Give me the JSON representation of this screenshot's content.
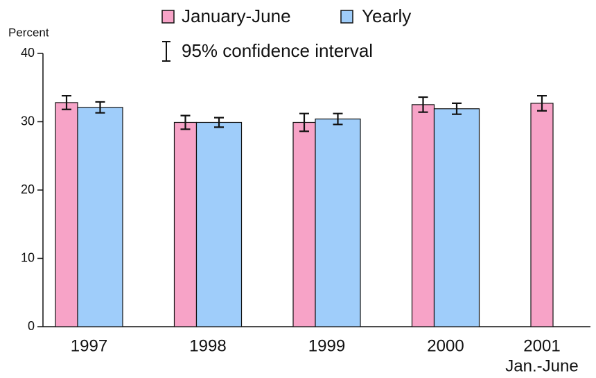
{
  "chart_data": {
    "type": "bar",
    "y_label": "Percent",
    "categories": [
      "1997",
      "1998",
      "1999",
      "2000",
      "2001"
    ],
    "category_note": "Jan.-June",
    "series": [
      {
        "name": "January-June",
        "color": "#f7a3c7",
        "values": [
          32.8,
          29.9,
          29.9,
          32.5,
          32.7
        ],
        "errors": [
          1.0,
          1.0,
          1.3,
          1.1,
          1.1
        ]
      },
      {
        "name": "Yearly",
        "color": "#9fcdfa",
        "values": [
          32.1,
          29.9,
          30.4,
          31.9,
          null
        ],
        "errors": [
          0.8,
          0.7,
          0.8,
          0.8,
          null
        ]
      }
    ],
    "error_label": "95% confidence interval",
    "ylim": [
      0,
      40
    ],
    "yticks": [
      0,
      10,
      20,
      30,
      40
    ]
  }
}
